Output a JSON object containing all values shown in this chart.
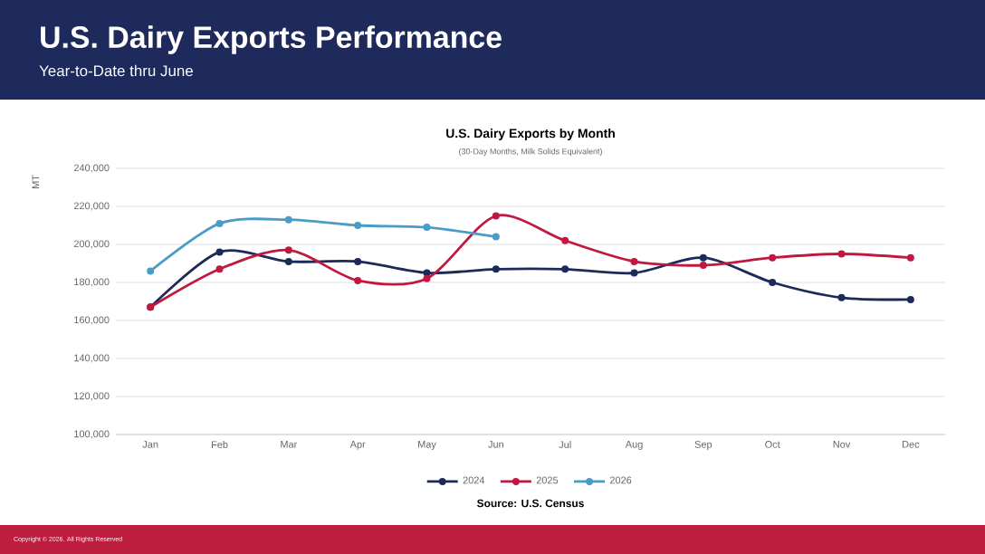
{
  "chart_data": {
    "type": "line",
    "title": "U.S. Dairy Exports by Month",
    "subtitle": "(30-Day Months, Milk Solids Equivalent)",
    "ylabel": "MT",
    "categories": [
      "Jan",
      "Feb",
      "Mar",
      "Apr",
      "May",
      "Jun",
      "Jul",
      "Aug",
      "Sep",
      "Oct",
      "Nov",
      "Dec"
    ],
    "series": [
      {
        "name": "2024",
        "color": "#1c2a5a",
        "values": [
          167000,
          196000,
          191000,
          191000,
          185000,
          187000,
          187000,
          185000,
          193000,
          180000,
          172000,
          171000
        ]
      },
      {
        "name": "2025",
        "color": "#c0183f",
        "values": [
          167000,
          187000,
          197000,
          181000,
          182000,
          215000,
          202000,
          191000,
          189000,
          193000,
          195000,
          193000
        ]
      },
      {
        "name": "2026",
        "color": "#4a9cc7",
        "values": [
          186000,
          211000,
          213000,
          210000,
          209000,
          204000,
          null,
          null,
          null,
          null,
          null,
          null
        ]
      }
    ],
    "ylim": [
      100000,
      240000
    ],
    "yticks": [
      {
        "value": 100000,
        "label": "100,000"
      },
      {
        "value": 120000,
        "label": "120,000"
      },
      {
        "value": 140000,
        "label": "140,000"
      },
      {
        "value": 160000,
        "label": "160,000"
      },
      {
        "value": 180000,
        "label": "180,000"
      },
      {
        "value": 200000,
        "label": "200,000"
      },
      {
        "value": 220000,
        "label": "220,000"
      },
      {
        "value": 240000,
        "label": "240,000"
      }
    ],
    "grid": "y",
    "legend": "bottom",
    "marker": "circle",
    "line_style": "solid",
    "annotations": [
      "U.S. Dairy Exports Performance",
      "Year-to-Date thru June",
      "Source: U.S. Census",
      "Copyright © 2026. All Rights Reserved"
    ]
  }
}
